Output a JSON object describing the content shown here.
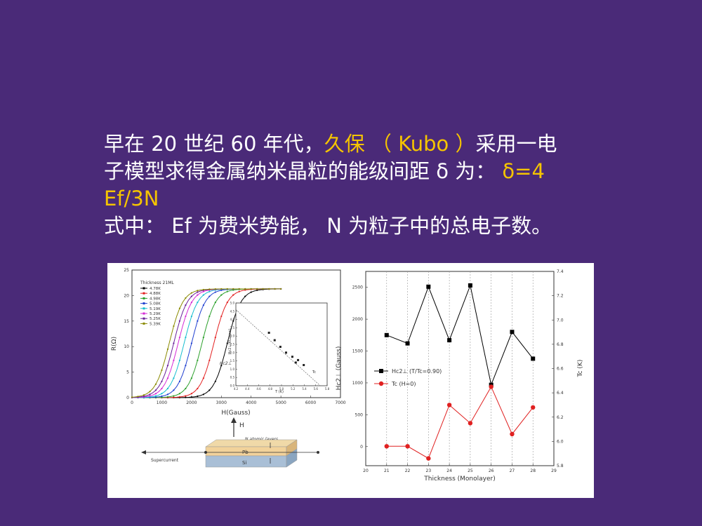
{
  "slide": {
    "line1_a": "早在 20 世纪 60 年代，",
    "line1_kubo": "久保 （ Kubo ）",
    "line1_b": "采用一电",
    "line2_a": "子模型求得金属纳米晶粒的能级间距 δ 为：",
    "line2_formula": "δ=4",
    "line3_formula": "Ef/3N",
    "line4": "式中： Ef 为费米势能， N 为粒子中的总电子数。",
    "colors": {
      "background": "#4a2a78",
      "text": "#ffffff",
      "highlight": "#f5c400"
    }
  },
  "chart_data": [
    {
      "type": "line",
      "xlabel": "H(Gauss)",
      "ylabel": "R(Ω)",
      "xlim": [
        0,
        7000
      ],
      "ylim": [
        0,
        25
      ],
      "xticks": [
        "0",
        "1000",
        "2000",
        "3000",
        "4000",
        "5000",
        "6000",
        "7000"
      ],
      "yticks": [
        "0",
        "5",
        "10",
        "15",
        "20",
        "25"
      ],
      "legend_title": "Thickness 21ML",
      "legend_position": "top-left",
      "series": [
        {
          "name": "4.78K",
          "color": "#000000",
          "midpoint": 3200
        },
        {
          "name": "4.88K",
          "color": "#e32020",
          "midpoint": 2750
        },
        {
          "name": "4.98K",
          "color": "#2ca02c",
          "midpoint": 2350
        },
        {
          "name": "5.08K",
          "color": "#1f3fd0",
          "midpoint": 2000
        },
        {
          "name": "5.19K",
          "color": "#17becf",
          "midpoint": 1750
        },
        {
          "name": "5.29K",
          "color": "#d62ad6",
          "midpoint": 1550
        },
        {
          "name": "5.25K",
          "color": "#6a1f9a",
          "midpoint": 1400
        },
        {
          "name": "5.39K",
          "color": "#8a8a00",
          "midpoint": 1250
        }
      ],
      "annotation": "Hc2⊥",
      "inset": {
        "xlabel": "T (K)",
        "ylabel": "Hc2⊥(KGauss)",
        "xlim": [
          4.2,
          5.8
        ],
        "ylim": [
          0,
          5
        ],
        "xticks": [
          "4.2",
          "4.4",
          "4.6",
          "4.8",
          "5.0",
          "5.2",
          "5.4",
          "5.6",
          "5.8"
        ],
        "yticks": [
          "0.0",
          "0.5",
          "1.0",
          "1.5",
          "2.0",
          "2.5",
          "3.0",
          "3.5",
          "4.0",
          "4.5",
          "5.0"
        ],
        "annotation": "Tc",
        "x": [
          4.78,
          4.88,
          4.98,
          5.08,
          5.19,
          5.25,
          5.29,
          5.39
        ],
        "y": [
          3.2,
          2.75,
          2.35,
          2.0,
          1.75,
          1.4,
          1.55,
          1.25
        ]
      }
    },
    {
      "type": "line",
      "xlabel": "Thickness (Monolayer)",
      "ylabel": "Hc2⊥ (Gauss)",
      "ylabel_right": "Tc (K)",
      "xlim": [
        20,
        29
      ],
      "ylim": [
        -300,
        2750
      ],
      "ylim_right": [
        5.8,
        7.4
      ],
      "xticks": [
        "20",
        "21",
        "22",
        "23",
        "24",
        "25",
        "26",
        "27",
        "28",
        "29"
      ],
      "yticks": [
        "0",
        "500",
        "1000",
        "1500",
        "2000",
        "2500"
      ],
      "yticks_right": [
        "5.8",
        "6.0",
        "6.2",
        "6.4",
        "6.6",
        "6.8",
        "7.0",
        "7.2",
        "7.4"
      ],
      "grid": "vertical-dotted",
      "legend_position": "center-left",
      "x": [
        21,
        22,
        23,
        24,
        25,
        26,
        27,
        28
      ],
      "series": [
        {
          "name": "Hc2⊥ (T/Tc=0.90)",
          "color": "#000000",
          "marker": "square",
          "axis": "left",
          "values": [
            1750,
            1620,
            2510,
            1670,
            2530,
            970,
            1800,
            1380
          ]
        },
        {
          "name": "Tc (H=0)",
          "color": "#e02020",
          "marker": "circle",
          "axis": "right",
          "values": [
            5.96,
            5.96,
            5.86,
            6.3,
            6.15,
            6.45,
            6.06,
            6.28
          ]
        }
      ]
    }
  ],
  "schematic": {
    "field_label": "H",
    "layers_label": "N atomic layers",
    "top_layer": "Pb",
    "bottom_layer": "Si",
    "current_label": "Supercurrent"
  }
}
